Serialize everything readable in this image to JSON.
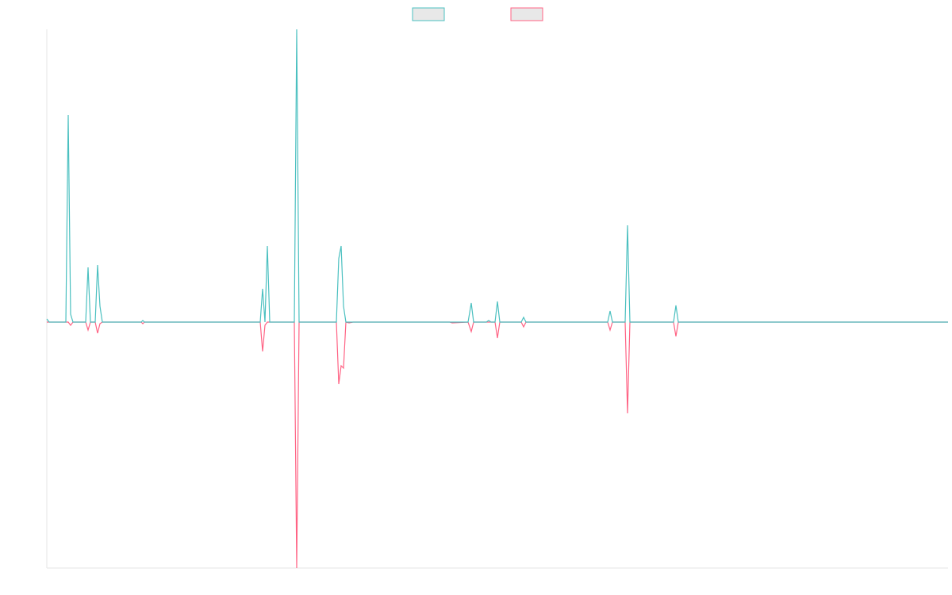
{
  "chart_data": {
    "type": "line",
    "x": [
      0,
      3,
      24,
      27,
      30,
      33,
      49,
      52,
      55,
      61,
      64,
      67,
      70,
      119,
      121,
      123,
      269,
      272,
      275,
      278,
      281,
      312,
      315,
      318,
      365,
      368,
      371,
      374,
      377,
      381,
      386,
      508,
      511,
      531,
      535,
      538,
      554,
      557,
      560,
      565,
      568,
      571,
      598,
      601,
      604,
      707,
      710,
      713,
      729,
      732,
      735,
      790,
      793,
      796,
      1136
    ],
    "xlim": [
      0,
      1136
    ],
    "ylim": [
      -310,
      369
    ],
    "legend": "top",
    "series": [
      {
        "color": "#4bc0c0",
        "values": [
          4,
          0,
          0,
          261,
          10,
          0,
          0,
          69,
          0,
          0,
          72,
          20,
          0,
          0,
          2,
          0,
          0,
          42,
          0,
          96,
          0,
          0,
          369,
          0,
          0,
          80,
          96,
          20,
          0,
          0,
          0,
          0,
          0,
          0,
          24,
          0,
          0,
          2,
          0,
          0,
          26,
          0,
          0,
          6,
          0,
          0,
          14,
          0,
          0,
          122,
          0,
          0,
          21,
          0,
          0
        ]
      },
      {
        "color": "#ff6384",
        "values": [
          0,
          0,
          0,
          0,
          -4,
          0,
          0,
          -10,
          0,
          0,
          -14,
          -2,
          0,
          0,
          -2,
          0,
          0,
          -37,
          -4,
          0,
          0,
          0,
          -310,
          0,
          0,
          -78,
          -55,
          -58,
          0,
          -1,
          0,
          0,
          -1,
          0,
          -12,
          0,
          0,
          0,
          0,
          0,
          -20,
          0,
          0,
          -6,
          0,
          0,
          -10,
          0,
          0,
          -115,
          0,
          0,
          -18,
          0,
          0
        ]
      }
    ]
  }
}
